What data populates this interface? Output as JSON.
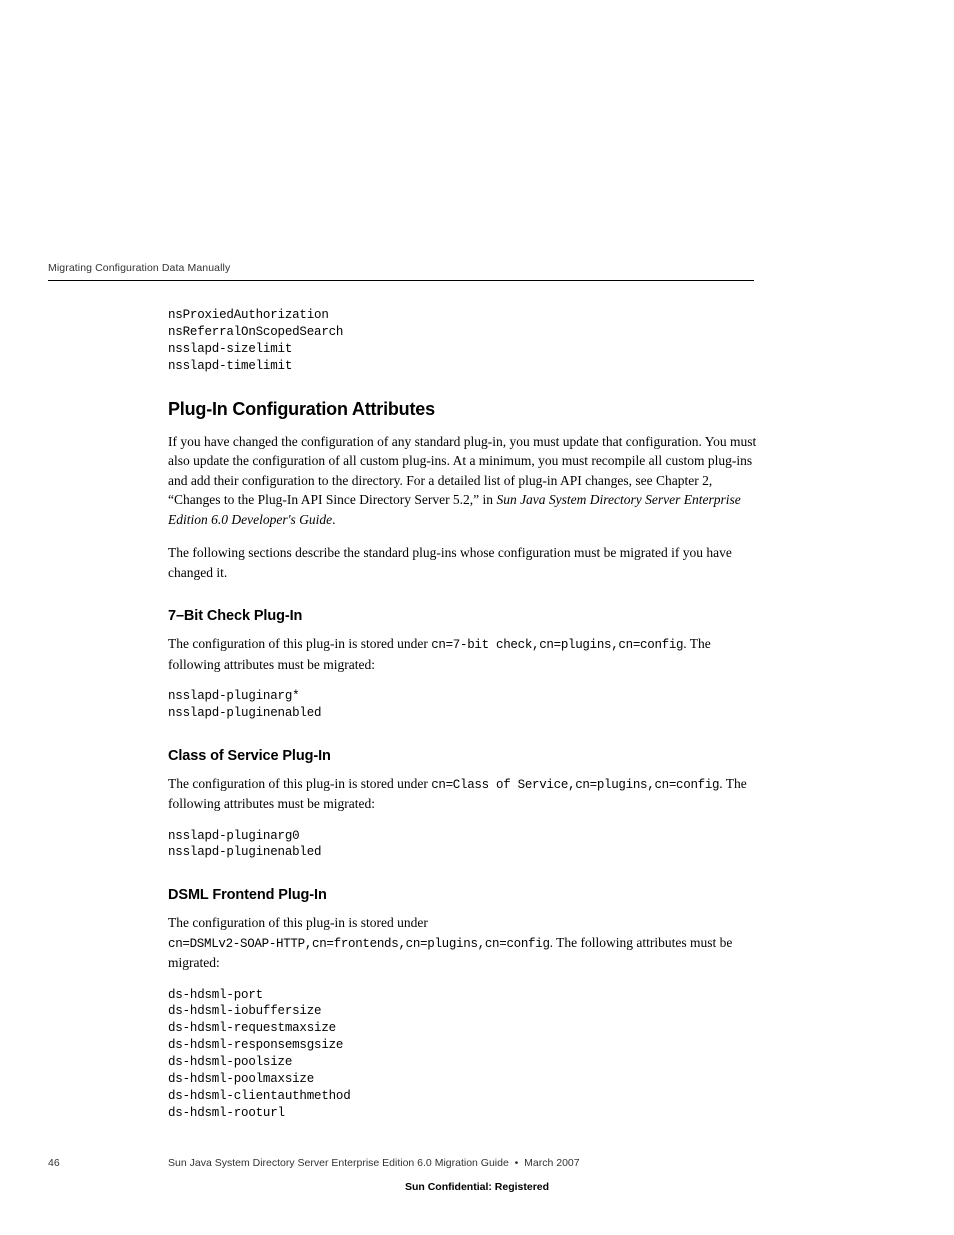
{
  "header": {
    "running_title": "Migrating Configuration Data Manually"
  },
  "top_code": {
    "l1": "nsProxiedAuthorization",
    "l2": "nsReferralOnScopedSearch",
    "l3": "nsslapd-sizelimit",
    "l4": "nsslapd-timelimit"
  },
  "section_title": "Plug-In Configuration Attributes",
  "para1a": "If you have changed the configuration of any standard plug-in, you must update that configuration. You must also update the configuration of all custom plug-ins. At a minimum, you must recompile all custom plug-ins and add their configuration to the directory. For a detailed list of plug-in API changes, see Chapter 2, “Changes to the Plug-In API Since Directory Server 5.2,” in ",
  "para1b_italic": "Sun Java System Directory Server Enterprise Edition 6.0 Developer's Guide",
  "para1c": ".",
  "para2": "The following sections describe the standard plug-ins whose configuration must be migrated if you have changed it.",
  "sub1": {
    "title": "7–Bit Check Plug-In",
    "p1a": "The configuration of this plug-in is stored under ",
    "p1_code": "cn=7-bit check,cn=plugins,cn=config",
    "p1b": ". The following attributes must be migrated:",
    "code_l1": "nsslapd-pluginarg*",
    "code_l2": "nsslapd-pluginenabled"
  },
  "sub2": {
    "title": "Class of Service Plug-In",
    "p1a": "The configuration of this plug-in is stored under ",
    "p1_code1": "cn=Class of Service,cn=plugins,cn=config",
    "p1b": ". The following attributes must be migrated:",
    "code_l1": "nsslapd-pluginarg0",
    "code_l2": "nsslapd-pluginenabled"
  },
  "sub3": {
    "title": "DSML Frontend Plug-In",
    "p1a": "The configuration of this plug-in is stored under ",
    "p1_code": "cn=DSMLv2-SOAP-HTTP,cn=frontends,cn=plugins,cn=config",
    "p1b": ". The following attributes must be migrated:",
    "code_l1": "ds-hdsml-port",
    "code_l2": "ds-hdsml-iobuffersize",
    "code_l3": "ds-hdsml-requestmaxsize",
    "code_l4": "ds-hdsml-responsemsgsize",
    "code_l5": "ds-hdsml-poolsize",
    "code_l6": "ds-hdsml-poolmaxsize",
    "code_l7": "ds-hdsml-clientauthmethod",
    "code_l8": "ds-hdsml-rooturl"
  },
  "footer": {
    "page_number": "46",
    "doc_title": "Sun Java System Directory Server Enterprise Edition 6.0 Migration Guide  •  March 2007",
    "confidential": "Sun Confidential: Registered"
  }
}
